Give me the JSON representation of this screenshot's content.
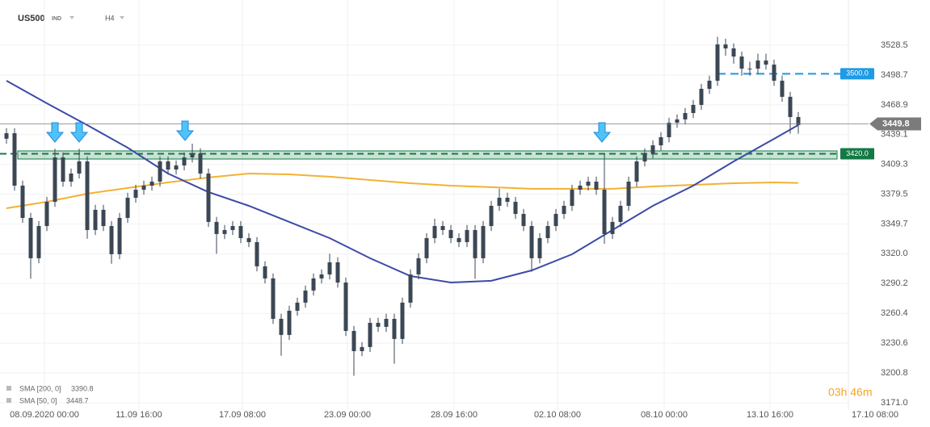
{
  "chart_data": {
    "type": "candlestick",
    "title": "US500",
    "subtitle": "IND",
    "timeframe": "H4",
    "candle_color": "#3b4754",
    "xlim": [
      -0.8,
      104.2
    ],
    "xticks": [
      {
        "value": 4.7,
        "label": "08.09.2020  00:00"
      },
      {
        "value": 16.4,
        "label": "11.09  16:00"
      },
      {
        "value": 29.2,
        "label": "17.09  08:00"
      },
      {
        "value": 42.2,
        "label": "23.09  00:00"
      },
      {
        "value": 55.4,
        "label": "28.09  16:00"
      },
      {
        "value": 68.2,
        "label": "02.10  08:00"
      },
      {
        "value": 81.4,
        "label": "08.10  00:00"
      },
      {
        "value": 94.5,
        "label": "13.10  16:00"
      },
      {
        "value": 107.5,
        "label": "17.10  08:00"
      }
    ],
    "ylim": [
      3163.7,
      3561.6
    ],
    "yticks": [
      {
        "value": 3171,
        "label": "3171.0"
      },
      3200.8,
      3230.6,
      3260.4,
      3290.2,
      {
        "value": 3320,
        "label": "3320.0"
      },
      3349.7,
      3379.5,
      3409.3,
      3439.1,
      3468.9,
      3498.7,
      3528.5
    ],
    "grid": true,
    "opens": [
      3435.0,
      3440.5,
      3388.1,
      3355.8,
      3315.5,
      3347.7,
      3371.9,
      3416.3,
      3392.1,
      3400.2,
      3412.3,
      3343.7,
      3363.9,
      3347.7,
      3319.5,
      3355.8,
      3376.0,
      3384.0,
      3388.1,
      3392.1,
      3412.3,
      3404.2,
      3408.3,
      3416.3,
      3420.4,
      3400.2,
      3351.8,
      3339.7,
      3343.7,
      3347.7,
      3335.6,
      3331.6,
      3307.4,
      3295.3,
      3254.9,
      3238.8,
      3263.0,
      3271.1,
      3283.2,
      3295.3,
      3299.3,
      3311.4,
      3291.2,
      3242.8,
      3222.6,
      3226.7,
      3250.9,
      3246.9,
      3254.9,
      3234.8,
      3271.1,
      3299.3,
      3315.5,
      3335.6,
      3347.7,
      3343.7,
      3335.6,
      3331.6,
      3343.7,
      3315.5,
      3347.7,
      3367.9,
      3376.0,
      3371.9,
      3359.8,
      3347.7,
      3315.5,
      3335.6,
      3347.7,
      3359.8,
      3367.9,
      3384.0,
      3388.1,
      3392.1,
      3384.0,
      3339.7,
      3351.8,
      3367.9,
      3392.1,
      3412.3,
      3420.4,
      3428.4,
      3436.5,
      3451.0,
      3454.3,
      3460.7,
      3468.8,
      3484.9,
      3493.0,
      3529.3,
      3525.3,
      3517.2,
      3505.1,
      3505.1,
      3513.2,
      3509.1,
      3493.0,
      3476.9,
      3456.7
    ],
    "highs": [
      3445.5,
      3445.5,
      3393.1,
      3360.8,
      3352.7,
      3376.9,
      3425.0,
      3421.3,
      3405.2,
      3425.0,
      3417.3,
      3368.9,
      3368.9,
      3352.7,
      3360.8,
      3381.0,
      3389.0,
      3393.1,
      3397.1,
      3417.3,
      3417.3,
      3413.3,
      3421.3,
      3430.0,
      3425.4,
      3405.2,
      3356.8,
      3348.7,
      3352.7,
      3352.7,
      3340.6,
      3336.6,
      3312.4,
      3300.3,
      3259.9,
      3268.0,
      3276.1,
      3288.2,
      3300.3,
      3304.3,
      3320.0,
      3316.4,
      3296.2,
      3247.8,
      3231.7,
      3255.9,
      3255.9,
      3259.9,
      3259.9,
      3276.1,
      3304.3,
      3320.5,
      3340.6,
      3355.0,
      3352.7,
      3348.7,
      3340.6,
      3348.7,
      3348.7,
      3352.7,
      3372.9,
      3385.0,
      3381.0,
      3376.9,
      3364.8,
      3352.7,
      3340.6,
      3352.7,
      3364.8,
      3372.9,
      3389.0,
      3393.1,
      3397.1,
      3397.1,
      3420.0,
      3356.8,
      3372.9,
      3397.1,
      3417.3,
      3425.4,
      3433.4,
      3441.5,
      3456.0,
      3459.3,
      3465.7,
      3473.8,
      3489.9,
      3498.0,
      3537.0,
      3535.0,
      3530.3,
      3522.2,
      3512.0,
      3520.0,
      3520.0,
      3514.1,
      3498.0,
      3481.9,
      3461.7
    ],
    "lows": [
      3430.0,
      3383.1,
      3350.8,
      3295.0,
      3310.5,
      3342.7,
      3366.9,
      3387.1,
      3387.1,
      3395.2,
      3335.0,
      3338.7,
      3342.7,
      3310.0,
      3314.5,
      3350.8,
      3371.0,
      3379.0,
      3383.1,
      3387.1,
      3399.2,
      3399.2,
      3403.3,
      3411.3,
      3395.2,
      3346.8,
      3320.0,
      3334.7,
      3338.7,
      3330.6,
      3326.6,
      3302.4,
      3290.3,
      3249.9,
      3218.0,
      3233.8,
      3258.0,
      3266.1,
      3278.2,
      3290.3,
      3294.3,
      3286.2,
      3237.8,
      3198.0,
      3217.6,
      3221.7,
      3241.9,
      3241.9,
      3210.0,
      3229.8,
      3266.1,
      3294.3,
      3310.5,
      3330.6,
      3338.7,
      3330.6,
      3326.6,
      3326.6,
      3295.0,
      3310.5,
      3342.7,
      3362.9,
      3366.9,
      3354.8,
      3342.7,
      3302.0,
      3310.5,
      3330.6,
      3342.7,
      3354.8,
      3362.9,
      3379.0,
      3383.1,
      3379.0,
      3330.0,
      3334.7,
      3346.8,
      3362.9,
      3387.1,
      3407.3,
      3415.4,
      3423.4,
      3431.5,
      3446.0,
      3449.3,
      3455.7,
      3463.8,
      3479.9,
      3488.0,
      3518.0,
      3510.0,
      3498.0,
      3498.0,
      3500.1,
      3504.1,
      3488.0,
      3471.9,
      3440.0,
      3440.0
    ],
    "closes": [
      3440.5,
      3388.1,
      3355.8,
      3315.5,
      3347.7,
      3371.9,
      3416.3,
      3392.1,
      3400.2,
      3412.3,
      3343.7,
      3363.9,
      3347.7,
      3319.5,
      3355.8,
      3376.0,
      3384.0,
      3388.1,
      3392.1,
      3412.3,
      3404.2,
      3408.3,
      3416.3,
      3420.4,
      3400.2,
      3351.8,
      3339.7,
      3343.7,
      3347.7,
      3335.6,
      3331.6,
      3307.4,
      3295.3,
      3254.9,
      3238.8,
      3263.0,
      3271.1,
      3283.2,
      3295.3,
      3299.3,
      3311.4,
      3291.2,
      3242.8,
      3222.6,
      3226.7,
      3250.9,
      3246.9,
      3254.9,
      3234.8,
      3271.1,
      3299.3,
      3315.5,
      3335.6,
      3347.7,
      3343.7,
      3335.6,
      3331.6,
      3343.7,
      3315.5,
      3347.7,
      3367.9,
      3376.0,
      3371.9,
      3359.8,
      3347.7,
      3315.5,
      3335.6,
      3347.7,
      3359.8,
      3367.9,
      3384.0,
      3388.1,
      3392.1,
      3384.0,
      3339.7,
      3351.8,
      3367.9,
      3392.1,
      3412.3,
      3420.4,
      3428.4,
      3436.5,
      3451.0,
      3454.3,
      3460.7,
      3468.8,
      3484.9,
      3493.0,
      3529.3,
      3525.3,
      3517.2,
      3505.1,
      3505.1,
      3513.2,
      3509.1,
      3493.0,
      3476.9,
      3456.7,
      3448.6
    ],
    "series": [
      {
        "name": "SMA [200, 0]",
        "color": "#f2b233",
        "x": [
          0,
          5,
          10,
          15,
          20,
          25,
          30,
          35,
          40,
          45,
          50,
          55,
          60,
          65,
          70,
          75,
          80,
          85,
          90,
          95,
          98
        ],
        "values": [
          3365.5,
          3371.9,
          3380.0,
          3385.7,
          3391.3,
          3396.2,
          3400.2,
          3399.4,
          3397.0,
          3393.7,
          3390.5,
          3388.1,
          3386.5,
          3384.9,
          3384.9,
          3384.9,
          3387.3,
          3388.9,
          3390.5,
          3391.3,
          3390.8
        ]
      },
      {
        "name": "SMA [50, 0]",
        "color": "#3d4aa8",
        "x": [
          0,
          5,
          10,
          15,
          20,
          25,
          30,
          35,
          40,
          45,
          50,
          55,
          60,
          65,
          70,
          75,
          80,
          85,
          90,
          95,
          98
        ],
        "values": [
          3493.0,
          3470.4,
          3448.6,
          3426.0,
          3400.2,
          3381.6,
          3367.9,
          3351.8,
          3335.6,
          3315.5,
          3297.7,
          3291.2,
          3292.9,
          3303.3,
          3319.5,
          3343.7,
          3367.9,
          3388.1,
          3412.3,
          3434.9,
          3448.7
        ]
      }
    ],
    "last_price": 3449.8,
    "last_price_color": "#7b7b7b",
    "levels": [
      {
        "price": {
          "value": 3500,
          "label": "3500.0"
        },
        "color": "#1d9be6"
      },
      {
        "price": {
          "value": 3420,
          "label": "3420.0"
        },
        "color": "#137a45",
        "zone": [
          3414.7,
          3422.8
        ]
      }
    ],
    "countdown": "03h 46m"
  }
}
